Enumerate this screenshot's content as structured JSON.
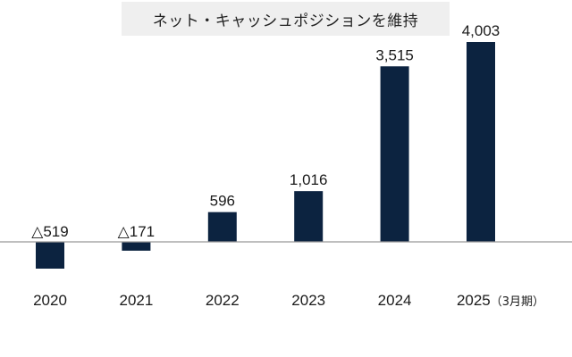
{
  "chart_data": {
    "type": "bar",
    "title": "ネット・キャッシュポジションを維持",
    "categories": [
      "2020",
      "2021",
      "2022",
      "2023",
      "2024",
      "2025"
    ],
    "category_notes": [
      "",
      "",
      "",
      "",
      "",
      "（3月期）"
    ],
    "values": [
      -519,
      -171,
      596,
      1016,
      3515,
      4003
    ],
    "value_labels": [
      "△519",
      "△171",
      "596",
      "1,016",
      "3,515",
      "4,003"
    ],
    "xlabel": "",
    "ylabel": "",
    "ylim": [
      -519,
      4003
    ],
    "grid": false,
    "bar_color": "#0c2340",
    "baseline_color": "#999999"
  }
}
